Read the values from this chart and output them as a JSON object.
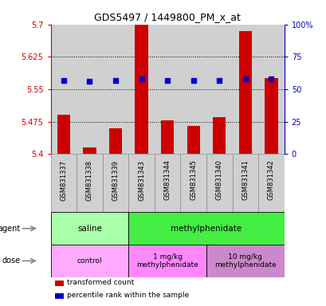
{
  "title": "GDS5497 / 1449800_PM_x_at",
  "samples": [
    "GSM831337",
    "GSM831338",
    "GSM831339",
    "GSM831343",
    "GSM831344",
    "GSM831345",
    "GSM831340",
    "GSM831341",
    "GSM831342"
  ],
  "bar_values": [
    5.49,
    5.415,
    5.46,
    5.7,
    5.478,
    5.465,
    5.485,
    5.685,
    5.575
  ],
  "percentile_values": [
    57,
    56,
    57,
    58,
    57,
    57,
    57,
    58,
    58
  ],
  "ymin": 5.4,
  "ymax": 5.7,
  "yticks": [
    5.4,
    5.475,
    5.55,
    5.625,
    5.7
  ],
  "ytick_labels": [
    "5.4",
    "5.475",
    "5.55",
    "5.625",
    "5.7"
  ],
  "right_yticks": [
    0,
    25,
    50,
    75,
    100
  ],
  "right_ytick_labels": [
    "0",
    "25",
    "50",
    "75",
    "100%"
  ],
  "bar_color": "#CC0000",
  "dot_color": "#0000CC",
  "bar_base": 5.4,
  "agent_groups": [
    {
      "label": "saline",
      "span": [
        0,
        2
      ],
      "color": "#AAFFAA"
    },
    {
      "label": "methylphenidate",
      "span": [
        3,
        8
      ],
      "color": "#44EE44"
    }
  ],
  "dose_groups": [
    {
      "label": "control",
      "span": [
        0,
        2
      ],
      "color": "#FFAAFF"
    },
    {
      "label": "1 mg/kg\nmethylphenidate",
      "span": [
        3,
        5
      ],
      "color": "#FF88FF"
    },
    {
      "label": "10 mg/kg\nmethylphenidate",
      "span": [
        6,
        8
      ],
      "color": "#CC88CC"
    }
  ],
  "legend_items": [
    {
      "color": "#CC0000",
      "label": "transformed count"
    },
    {
      "color": "#0000CC",
      "label": "percentile rank within the sample"
    }
  ],
  "cell_bg": "#D0D0D0",
  "plot_bg": "#FFFFFF",
  "left_label_color": "#CC0000",
  "right_label_color": "#0000CC"
}
